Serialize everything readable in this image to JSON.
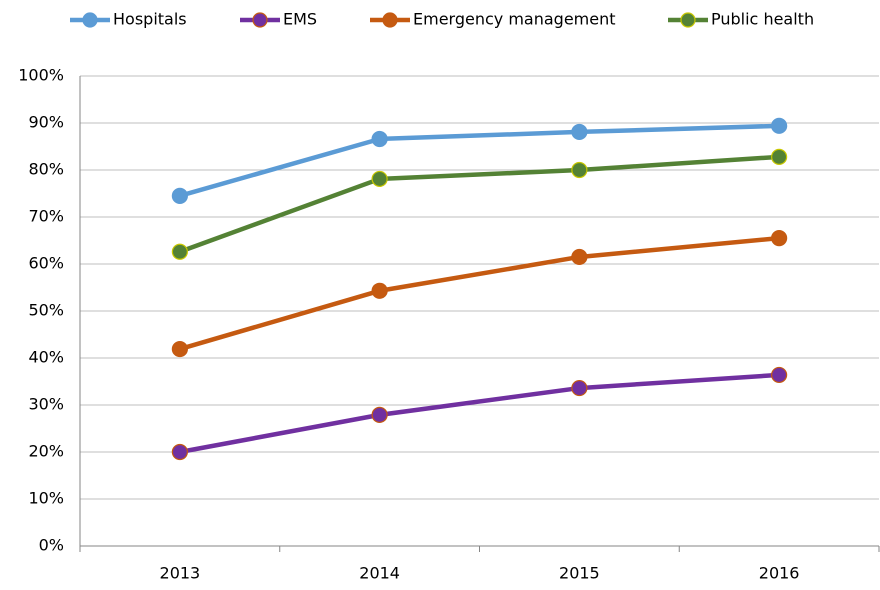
{
  "chart_data": {
    "type": "line",
    "categories": [
      "2013",
      "2014",
      "2015",
      "2016"
    ],
    "series": [
      {
        "name": "Hospitals",
        "color": "#5b9bd5",
        "marker_color": "#5b9bd5",
        "values": [
          74.5,
          86.6,
          88.1,
          89.4
        ]
      },
      {
        "name": "EMS",
        "color": "#7030a0",
        "marker_color": "#c55a11",
        "values": [
          20.0,
          27.9,
          33.6,
          36.4
        ]
      },
      {
        "name": "Emergency management",
        "color": "#c55a11",
        "marker_color": "#c55a11",
        "values": [
          41.9,
          54.3,
          61.5,
          65.5
        ]
      },
      {
        "name": "Public health",
        "color": "#548235",
        "marker_color": "#c9c800",
        "values": [
          62.6,
          78.1,
          80.0,
          82.8
        ]
      }
    ],
    "ylim": [
      0,
      100
    ],
    "yticks": [
      {
        "value": 0,
        "label": "0%"
      },
      {
        "value": 10,
        "label": "10%"
      },
      {
        "value": 20,
        "label": "20%"
      },
      {
        "value": 30,
        "label": "30%"
      },
      {
        "value": 40,
        "label": "40%"
      },
      {
        "value": 50,
        "label": "50%"
      },
      {
        "value": 60,
        "label": "60%"
      },
      {
        "value": 70,
        "label": "70%"
      },
      {
        "value": 80,
        "label": "80%"
      },
      {
        "value": 90,
        "label": "90%"
      },
      {
        "value": 100,
        "label": "100%"
      }
    ],
    "grid": true,
    "legend": "top"
  }
}
